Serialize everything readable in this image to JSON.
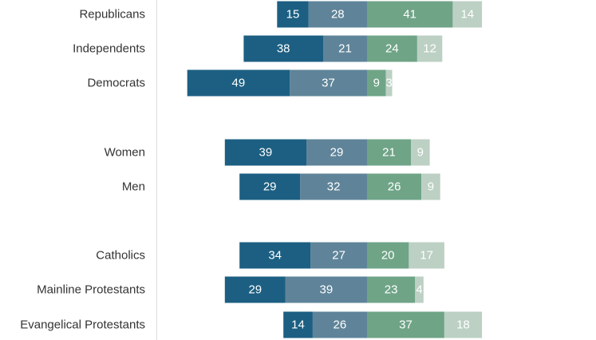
{
  "chart_data": {
    "type": "bar",
    "orientation": "horizontal-diverging",
    "stacked": true,
    "categories": [
      "Republicans",
      "Independents",
      "Democrats",
      "",
      "Women",
      "Men",
      "",
      "Catholics",
      "Mainline Protestants",
      "Evangelical Protestants"
    ],
    "series": [
      {
        "color": "#1c5f82",
        "side": "left",
        "values": [
          15,
          38,
          49,
          null,
          39,
          29,
          null,
          34,
          29,
          14
        ]
      },
      {
        "color": "#5f8499",
        "side": "left",
        "values": [
          28,
          21,
          37,
          null,
          29,
          32,
          null,
          27,
          39,
          26
        ]
      },
      {
        "color": "#6fa487",
        "side": "right",
        "values": [
          41,
          24,
          9,
          null,
          21,
          26,
          null,
          20,
          23,
          37
        ]
      },
      {
        "color": "#bcd0c4",
        "side": "right",
        "values": [
          14,
          12,
          3,
          null,
          9,
          9,
          null,
          17,
          4,
          18
        ]
      }
    ],
    "title": "",
    "xlabel": "",
    "ylabel": "",
    "grid": false,
    "legend": "none"
  },
  "colors": {
    "axis_line": "#dddddd",
    "label_text": "#333333",
    "segment_text": "#ffffff"
  }
}
